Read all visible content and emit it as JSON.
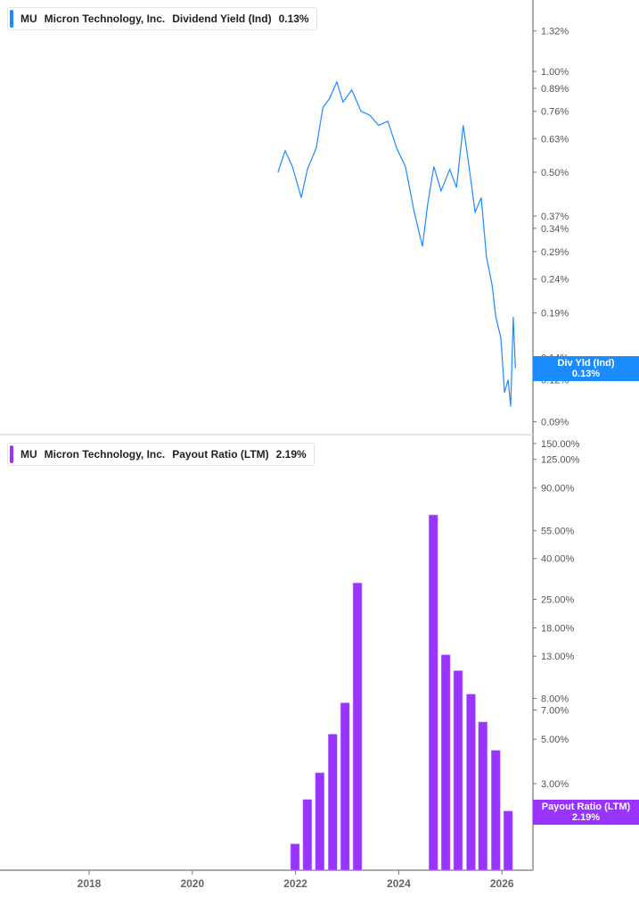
{
  "legend_top": {
    "ticker": "MU",
    "company": "Micron Technology, Inc.",
    "metric": "Dividend Yield (Ind)",
    "value": "0.13%",
    "color": "#1a8cff"
  },
  "legend_bottom": {
    "ticker": "MU",
    "company": "Micron Technology, Inc.",
    "metric": "Payout Ratio (LTM)",
    "value": "2.19%",
    "color": "#9933ff"
  },
  "tag_top": {
    "label": "Div Yld (Ind)",
    "value": "0.13%"
  },
  "tag_bottom": {
    "label": "Payout Ratio (LTM)",
    "value": "2.19%"
  },
  "chart_data": [
    {
      "type": "line",
      "name": "Dividend Yield (Ind)",
      "yscale": "log",
      "ylim": [
        0.085,
        1.5
      ],
      "xlim": [
        2016.9,
        2026.6
      ],
      "yticks": [
        1.32,
        1.0,
        0.89,
        0.76,
        0.63,
        0.5,
        0.37,
        0.34,
        0.29,
        0.24,
        0.19,
        0.14,
        0.12,
        0.09
      ],
      "ytick_labels": [
        "1.32%",
        "1.00%",
        "0.89%",
        "0.76%",
        "0.63%",
        "0.50%",
        "0.37%",
        "0.34%",
        "0.29%",
        "0.24%",
        "0.19%",
        "0.14%",
        "0.12%",
        "0.09%"
      ],
      "x": [
        2021.66,
        2021.8,
        2021.94,
        2022.11,
        2022.23,
        2022.4,
        2022.53,
        2022.66,
        2022.8,
        2022.92,
        2023.09,
        2023.27,
        2023.44,
        2023.61,
        2023.79,
        2023.96,
        2024.13,
        2024.3,
        2024.46,
        2024.56,
        2024.68,
        2024.82,
        2024.99,
        2025.12,
        2025.25,
        2025.37,
        2025.48,
        2025.6,
        2025.7,
        2025.81,
        2025.88,
        2025.98,
        2026.05,
        2026.12,
        2026.17,
        2026.22,
        2026.26
      ],
      "y": [
        0.5,
        0.58,
        0.52,
        0.42,
        0.51,
        0.59,
        0.78,
        0.83,
        0.93,
        0.81,
        0.88,
        0.76,
        0.74,
        0.69,
        0.71,
        0.59,
        0.52,
        0.38,
        0.3,
        0.4,
        0.52,
        0.44,
        0.51,
        0.45,
        0.69,
        0.51,
        0.38,
        0.42,
        0.28,
        0.23,
        0.185,
        0.16,
        0.11,
        0.12,
        0.1,
        0.185,
        0.13
      ]
    },
    {
      "type": "bar",
      "name": "Payout Ratio (LTM)",
      "yscale": "log",
      "ylim": [
        1.1,
        170
      ],
      "xlim": [
        2016.9,
        2026.6
      ],
      "yticks": [
        150,
        125,
        90,
        55,
        40,
        25,
        18,
        13,
        8,
        7,
        5,
        3,
        2
      ],
      "ytick_labels": [
        "150.00%",
        "125.00%",
        "90.00%",
        "55.00%",
        "40.00%",
        "25.00%",
        "18.00%",
        "13.00%",
        "8.00%",
        "7.00%",
        "5.00%",
        "3.00%",
        "2.00%"
      ],
      "xticks": [
        2018,
        2020,
        2022,
        2024,
        2026
      ],
      "xtick_labels": [
        "2018",
        "2020",
        "2022",
        "2024",
        "2026"
      ],
      "x": [
        2021.99,
        2022.23,
        2022.47,
        2022.72,
        2022.96,
        2023.2,
        2024.67,
        2024.91,
        2025.15,
        2025.4,
        2025.63,
        2025.88,
        2026.12
      ],
      "values": [
        1.5,
        2.5,
        3.4,
        5.3,
        7.6,
        30.2,
        66,
        13.2,
        11.0,
        8.4,
        6.1,
        4.4,
        2.19
      ]
    }
  ]
}
